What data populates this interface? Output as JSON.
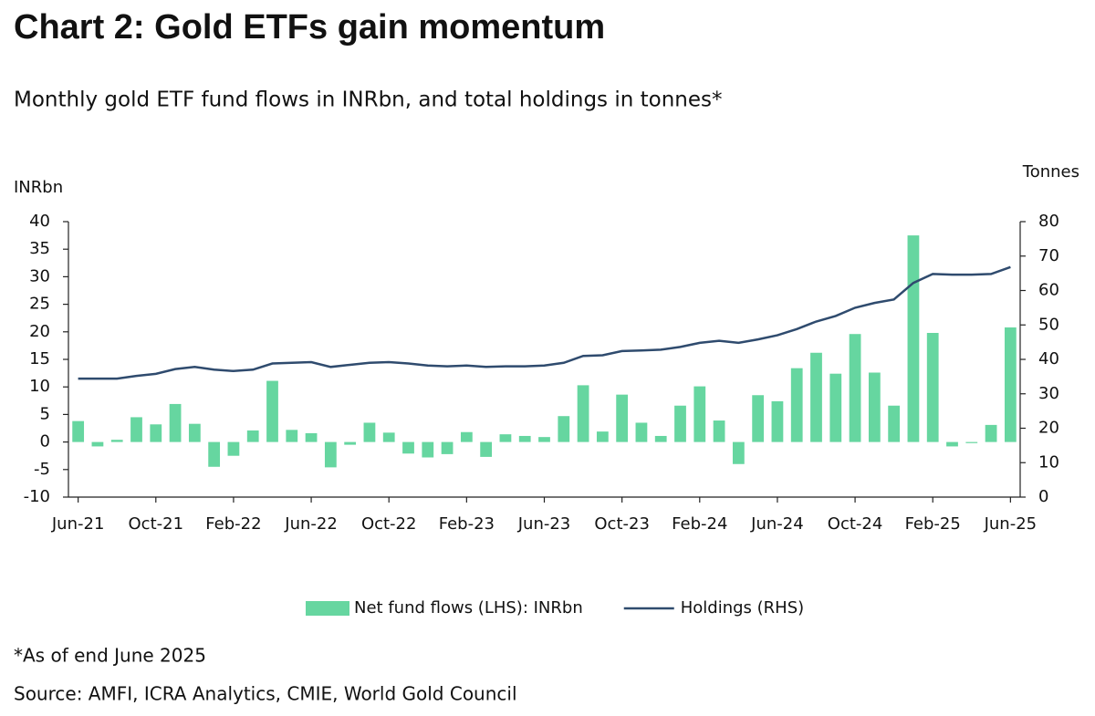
{
  "chart_data": {
    "type": "combo",
    "title": "Chart 2: Gold ETFs gain momentum",
    "subtitle": "Monthly gold ETF fund flows in INRbn, and total holdings in tonnes*",
    "ylabel": "INRbn",
    "y2label": "Tonnes",
    "notes": [
      "*As of end June 2025",
      "Source: AMFI, ICRA Analytics, CMIE, World Gold Council"
    ],
    "categories": [
      "Jun-21",
      null,
      null,
      null,
      "Oct-21",
      null,
      null,
      null,
      "Feb-22",
      null,
      null,
      null,
      "Jun-22",
      null,
      null,
      null,
      "Oct-22",
      null,
      null,
      null,
      "Feb-23",
      null,
      null,
      null,
      "Jun-23",
      null,
      null,
      null,
      "Oct-23",
      null,
      null,
      null,
      "Feb-24",
      null,
      null,
      null,
      "Jun-24",
      null,
      null,
      null,
      "Oct-24",
      null,
      null,
      null,
      "Feb-25",
      null,
      null,
      null,
      "Jun-25"
    ],
    "series": [
      {
        "name": "Net fund flows (LHS): INRbn",
        "type": "bar",
        "color": "#66d6a0",
        "values": [
          3.8,
          -0.8,
          0.4,
          4.5,
          3.2,
          6.9,
          3.3,
          -4.5,
          -2.5,
          2.1,
          11.1,
          2.2,
          1.6,
          -4.6,
          -0.5,
          3.5,
          1.7,
          -2.1,
          -2.8,
          -2.2,
          1.8,
          -2.7,
          1.4,
          1.1,
          0.9,
          4.7,
          10.3,
          1.9,
          8.6,
          3.5,
          1.1,
          6.6,
          10.1,
          3.9,
          -4.0,
          8.5,
          7.4,
          13.4,
          16.2,
          12.4,
          19.6,
          12.6,
          6.6,
          37.5,
          19.8,
          -0.8,
          -0.2,
          3.1,
          20.8
        ]
      },
      {
        "name": "Holdings (RHS)",
        "type": "line",
        "axis": "y2",
        "color": "#2f4b6e",
        "values": [
          34.4,
          34.4,
          34.4,
          35.2,
          35.8,
          37.2,
          37.8,
          37.0,
          36.6,
          37.0,
          38.8,
          39.0,
          39.2,
          37.8,
          38.4,
          39.0,
          39.2,
          38.8,
          38.2,
          38.0,
          38.2,
          37.8,
          38.0,
          38.0,
          38.2,
          39.0,
          41.0,
          41.2,
          42.4,
          42.6,
          42.8,
          43.6,
          44.8,
          45.4,
          44.8,
          45.8,
          47.0,
          48.8,
          51.0,
          52.6,
          55.0,
          56.4,
          57.4,
          62.2,
          64.8,
          64.6,
          64.6,
          64.8,
          66.8
        ]
      }
    ],
    "ylim": [
      -10,
      40
    ],
    "yticks": [
      -10,
      -5,
      0,
      5,
      10,
      15,
      20,
      25,
      30,
      35,
      40
    ],
    "y2lim": [
      0,
      80
    ],
    "y2ticks": [
      0,
      10,
      20,
      30,
      40,
      50,
      60,
      70,
      80
    ],
    "legend": "bottom",
    "grid": false
  }
}
